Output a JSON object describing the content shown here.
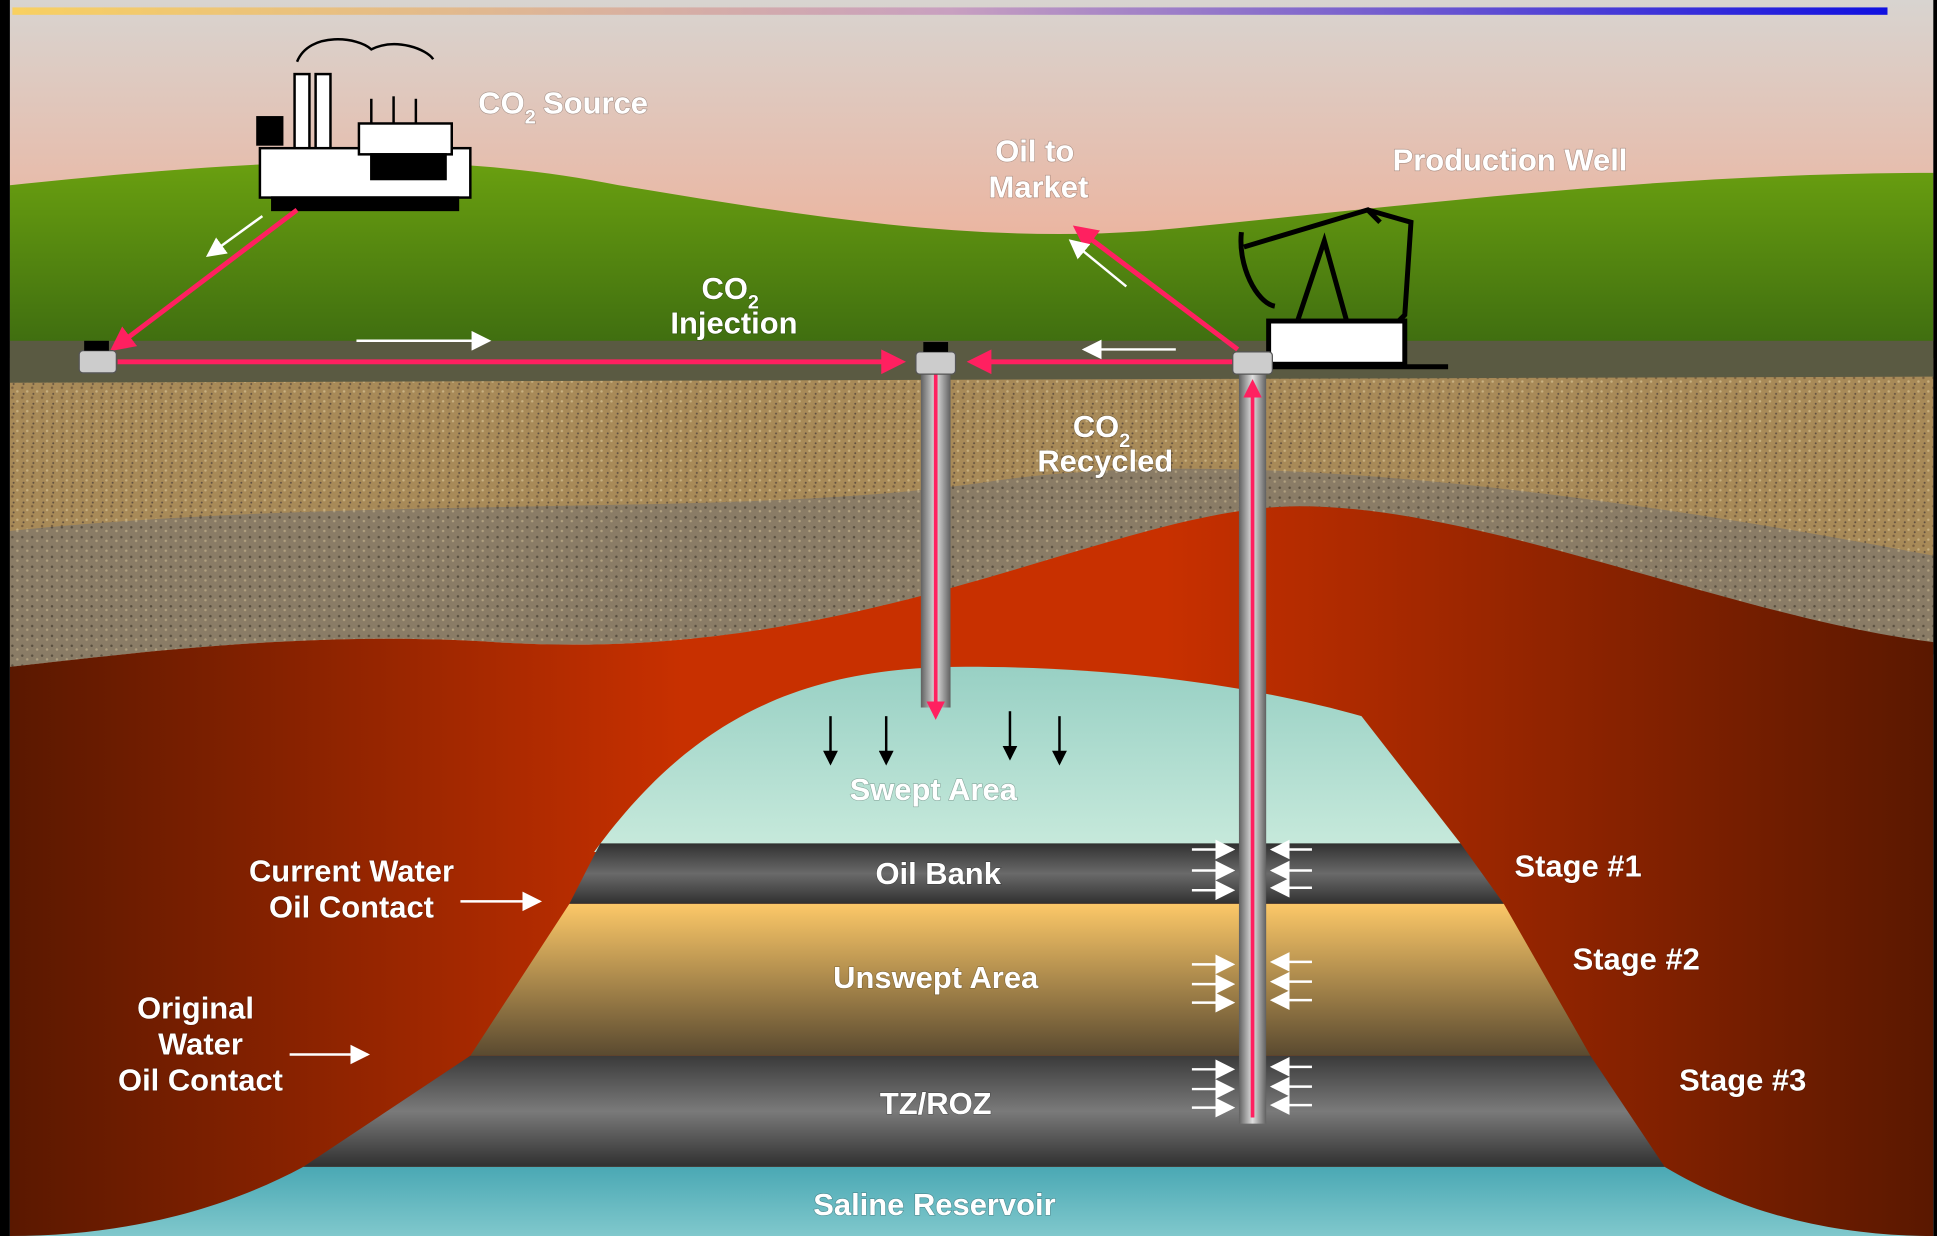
{
  "labels": {
    "co2_source": {
      "base": "CO",
      "sub": "2",
      "rest": "Source"
    },
    "oil_to_market": [
      "Oil to",
      "Market"
    ],
    "production_well": "Production Well",
    "co2_injection": {
      "base": "CO",
      "sub": "2",
      "rest": "Injection"
    },
    "co2_recycled": {
      "base": "CO",
      "sub": "2",
      "rest": "Recycled"
    },
    "swept_area": "Swept Area",
    "oil_bank": "Oil Bank",
    "unswept_area": "Unswept Area",
    "tz_roz": "TZ/ROZ",
    "saline_reservoir": "Saline Reservoir",
    "current_contact": [
      "Current Water",
      "Oil Contact"
    ],
    "original_contact": [
      "Original",
      "Water",
      "Oil Contact"
    ],
    "stages": [
      "Stage #1",
      "Stage #2",
      "Stage #3"
    ]
  }
}
